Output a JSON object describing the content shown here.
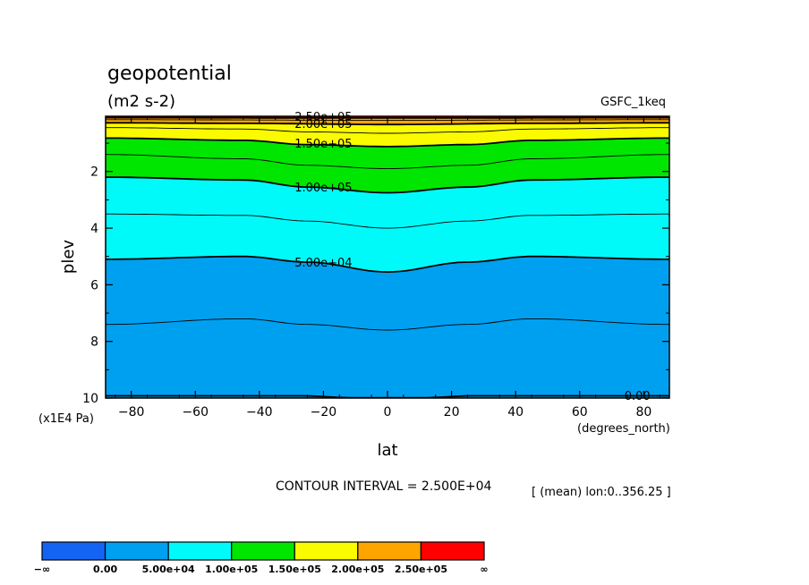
{
  "chart_data": {
    "type": "contour",
    "title": "geopotential",
    "units": "(m2 s-2)",
    "dataset": "GSFC_1keq",
    "xlabel": "lat",
    "ylabel": "plev",
    "x_units": "(degrees_north)",
    "y_units": "(x1E4 Pa)",
    "xlim": [
      -88,
      88
    ],
    "ylim": [
      10,
      0.05
    ],
    "x_ticks": [
      -80,
      -60,
      -40,
      -20,
      0,
      20,
      40,
      60,
      80
    ],
    "x_tick_labels": [
      "−80",
      "−60",
      "−40",
      "−20",
      "0",
      "20",
      "40",
      "60",
      "80"
    ],
    "y_ticks": [
      2,
      4,
      6,
      8,
      10
    ],
    "y_tick_labels": [
      "2",
      "4",
      "6",
      "8",
      "10"
    ],
    "contour_interval_text": "CONTOUR INTERVAL = 2.500E+04",
    "mean_text": "[ (mean) lon:0..356.25 ]",
    "levels": [
      {
        "value": 0,
        "profile": [
          {
            "lat": -88,
            "plev": 9.92
          },
          {
            "lat": -28,
            "plev": 9.92
          },
          {
            "lat": -10,
            "plev": 9.99
          },
          {
            "lat": 10,
            "plev": 9.99
          },
          {
            "lat": 28,
            "plev": 9.92
          },
          {
            "lat": 88,
            "plev": 9.92
          }
        ]
      },
      {
        "value": 25000,
        "profile": [
          {
            "lat": -88,
            "plev": 7.4
          },
          {
            "lat": -45,
            "plev": 7.2
          },
          {
            "lat": -25,
            "plev": 7.4
          },
          {
            "lat": 0,
            "plev": 7.6
          },
          {
            "lat": 25,
            "plev": 7.4
          },
          {
            "lat": 45,
            "plev": 7.2
          },
          {
            "lat": 88,
            "plev": 7.4
          }
        ]
      },
      {
        "value": 50000,
        "profile": [
          {
            "lat": -88,
            "plev": 5.1
          },
          {
            "lat": -45,
            "plev": 5.0
          },
          {
            "lat": -25,
            "plev": 5.2
          },
          {
            "lat": 0,
            "plev": 5.55
          },
          {
            "lat": 25,
            "plev": 5.2
          },
          {
            "lat": 45,
            "plev": 5.0
          },
          {
            "lat": 88,
            "plev": 5.1
          }
        ]
      },
      {
        "value": 75000,
        "profile": [
          {
            "lat": -88,
            "plev": 3.5
          },
          {
            "lat": -45,
            "plev": 3.55
          },
          {
            "lat": -25,
            "plev": 3.75
          },
          {
            "lat": 0,
            "plev": 4.0
          },
          {
            "lat": 25,
            "plev": 3.75
          },
          {
            "lat": 45,
            "plev": 3.55
          },
          {
            "lat": 88,
            "plev": 3.5
          }
        ]
      },
      {
        "value": 100000,
        "profile": [
          {
            "lat": -88,
            "plev": 2.2
          },
          {
            "lat": -45,
            "plev": 2.3
          },
          {
            "lat": -25,
            "plev": 2.55
          },
          {
            "lat": 0,
            "plev": 2.75
          },
          {
            "lat": 25,
            "plev": 2.55
          },
          {
            "lat": 45,
            "plev": 2.3
          },
          {
            "lat": 88,
            "plev": 2.2
          }
        ]
      },
      {
        "value": 125000,
        "profile": [
          {
            "lat": -88,
            "plev": 1.4
          },
          {
            "lat": -45,
            "plev": 1.55
          },
          {
            "lat": -25,
            "plev": 1.78
          },
          {
            "lat": 0,
            "plev": 1.9
          },
          {
            "lat": 25,
            "plev": 1.78
          },
          {
            "lat": 45,
            "plev": 1.55
          },
          {
            "lat": 88,
            "plev": 1.4
          }
        ]
      },
      {
        "value": 150000,
        "profile": [
          {
            "lat": -88,
            "plev": 0.82
          },
          {
            "lat": -45,
            "plev": 0.9
          },
          {
            "lat": -25,
            "plev": 1.05
          },
          {
            "lat": 0,
            "plev": 1.12
          },
          {
            "lat": 25,
            "plev": 1.05
          },
          {
            "lat": 45,
            "plev": 0.9
          },
          {
            "lat": 88,
            "plev": 0.82
          }
        ]
      },
      {
        "value": 175000,
        "profile": [
          {
            "lat": -88,
            "plev": 0.45
          },
          {
            "lat": -45,
            "plev": 0.5
          },
          {
            "lat": -25,
            "plev": 0.6
          },
          {
            "lat": 0,
            "plev": 0.65
          },
          {
            "lat": 25,
            "plev": 0.6
          },
          {
            "lat": 45,
            "plev": 0.5
          },
          {
            "lat": 88,
            "plev": 0.45
          }
        ]
      },
      {
        "value": 200000,
        "profile": [
          {
            "lat": -88,
            "plev": 0.28
          },
          {
            "lat": -45,
            "plev": 0.3
          },
          {
            "lat": 0,
            "plev": 0.34
          },
          {
            "lat": 45,
            "plev": 0.3
          },
          {
            "lat": 88,
            "plev": 0.28
          }
        ]
      },
      {
        "value": 225000,
        "profile": [
          {
            "lat": -88,
            "plev": 0.17
          },
          {
            "lat": 0,
            "plev": 0.19
          },
          {
            "lat": 88,
            "plev": 0.17
          }
        ]
      },
      {
        "value": 250000,
        "profile": [
          {
            "lat": -88,
            "plev": 0.1
          },
          {
            "lat": 0,
            "plev": 0.11
          },
          {
            "lat": 88,
            "plev": 0.1
          }
        ]
      }
    ],
    "contour_labels": [
      {
        "text": "2.50e+05",
        "lat": -20,
        "plev": 0.05
      },
      {
        "text": "2.00e+05",
        "lat": -20,
        "plev": 0.3
      },
      {
        "text": "1.50e+05",
        "lat": -20,
        "plev": 1.0
      },
      {
        "text": "1.00e+05",
        "lat": -20,
        "plev": 2.55
      },
      {
        "text": "5.00e+04",
        "lat": -20,
        "plev": 5.2
      },
      {
        "text": "0.00",
        "lat": 78,
        "plev": 9.9
      }
    ],
    "colorbar": {
      "colors": [
        "#1464f4",
        "#00a0f0",
        "#00fafa",
        "#00e600",
        "#fafa00",
        "#ffa500",
        "#ff0000"
      ],
      "labels": [
        "−∞",
        "0.00",
        "5.00e+04",
        "1.00e+05",
        "1.50e+05",
        "2.00e+05",
        "2.50e+05",
        "∞"
      ]
    },
    "band_colors": [
      "#00a0f0",
      "#00fafa",
      "#00e600",
      "#fafa00",
      "#ffa500",
      "#ff0000"
    ]
  }
}
